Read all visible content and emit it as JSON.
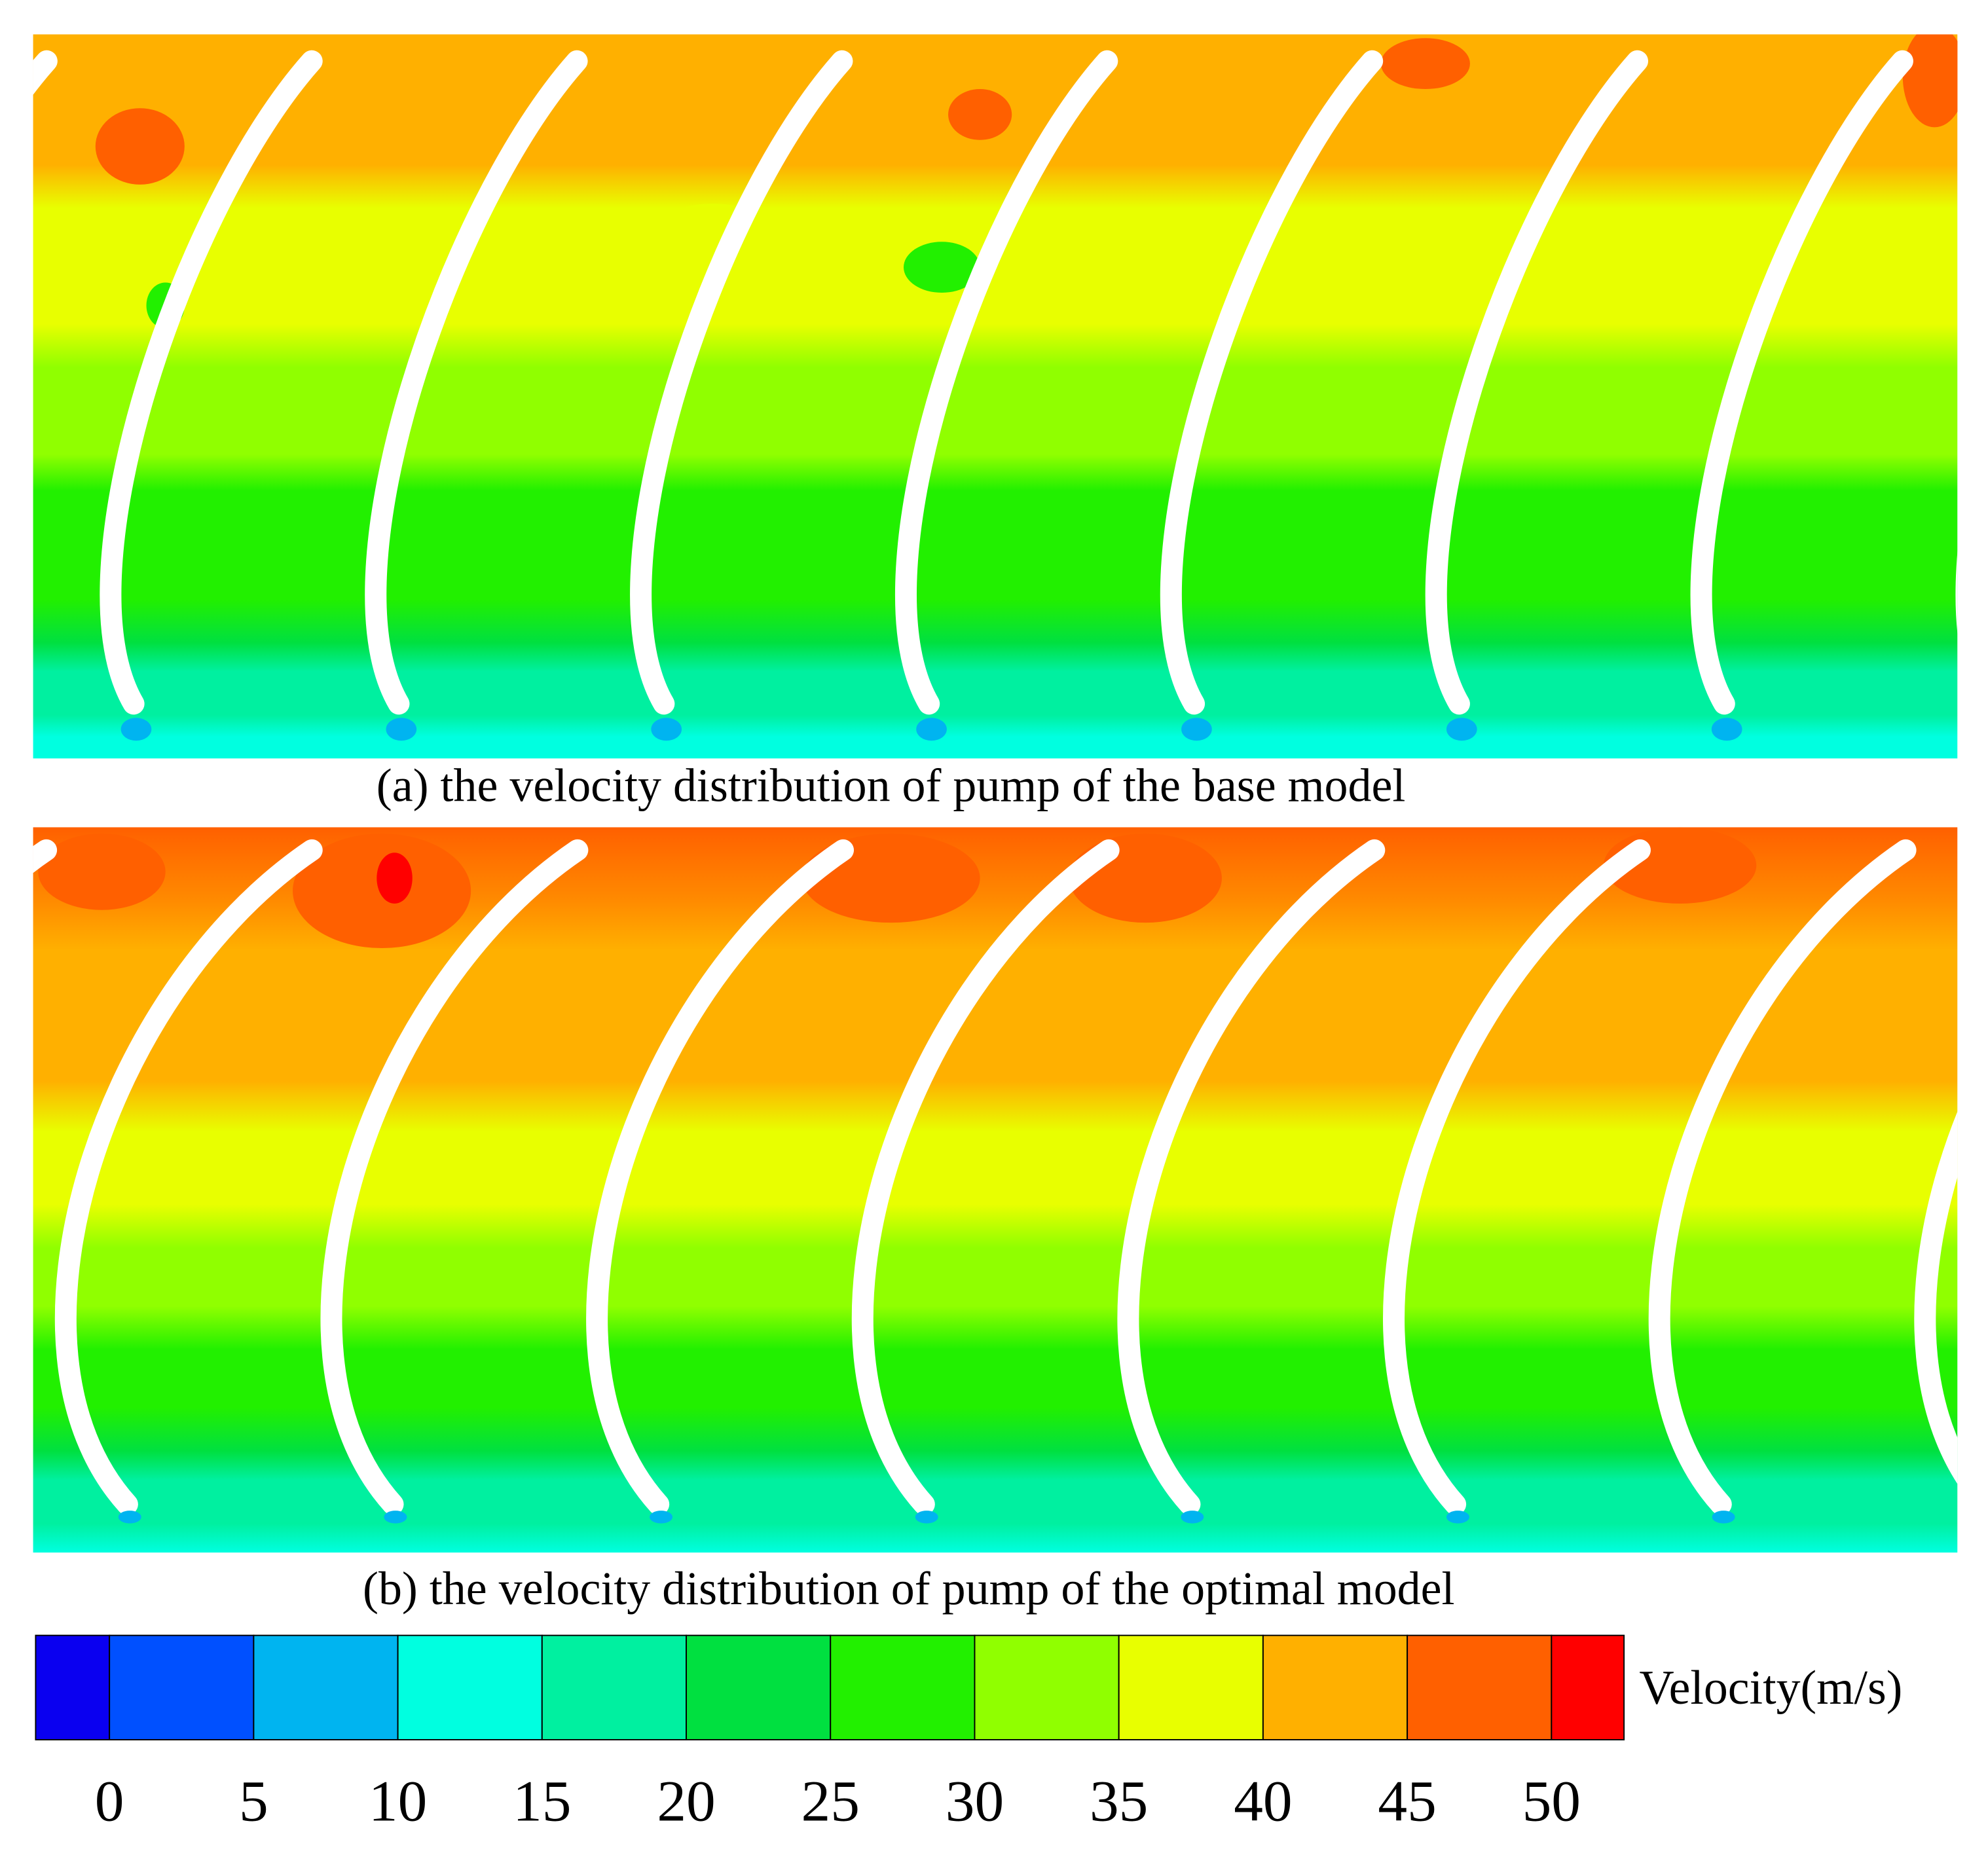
{
  "panels": [
    {
      "caption": "(a) the velocity distribution of pump of the base model"
    },
    {
      "caption": "(b) the velocity distribution of pump of the optimal model"
    }
  ],
  "colorbar": {
    "label": "Velocity(m/s)",
    "ticks": [
      0,
      5,
      10,
      15,
      20,
      25,
      30,
      35,
      40,
      45,
      50
    ],
    "colors": [
      "#0a00f0",
      "#0050ff",
      "#00b4f0",
      "#00ffe0",
      "#00f0a0",
      "#00e040",
      "#22f000",
      "#90ff00",
      "#e8ff00",
      "#ffb000",
      "#ff6000",
      "#ff0000"
    ]
  }
}
